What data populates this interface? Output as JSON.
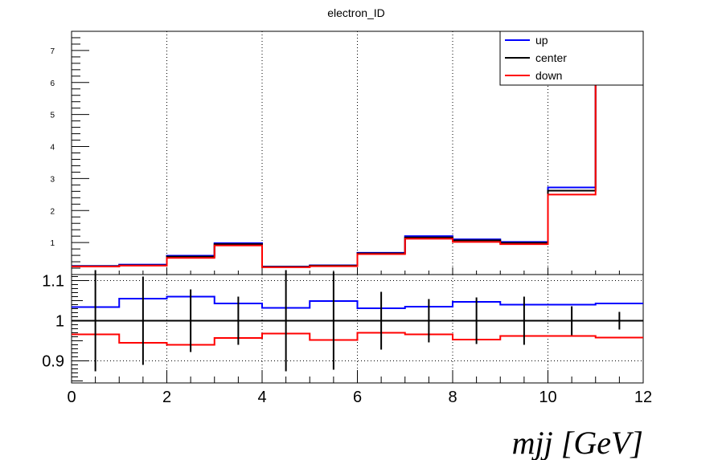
{
  "chart_data": {
    "type": "line",
    "title": "electron_ID",
    "xlabel": "mjj [GeV]",
    "legend": {
      "placement": "top-right",
      "entries": [
        {
          "name": "up",
          "color": "#0000ff"
        },
        {
          "name": "center",
          "color": "#000000"
        },
        {
          "name": "down",
          "color": "#ff0000"
        }
      ]
    },
    "bin_edges": [
      0,
      1,
      2,
      3,
      4,
      5,
      6,
      7,
      8,
      9,
      10,
      11,
      12
    ],
    "top_panel": {
      "ylim": [
        0,
        7.6
      ],
      "yticks": [
        1,
        2,
        3,
        4,
        5,
        6,
        7
      ],
      "ytick_labels": [
        "1",
        "2",
        "3",
        "4",
        "5",
        "6",
        "7"
      ],
      "grid_x": [
        2,
        4,
        6,
        8,
        10
      ],
      "series": [
        {
          "name": "up",
          "color": "#0000ff",
          "values": [
            0.27,
            0.31,
            0.59,
            0.98,
            0.25,
            0.29,
            0.68,
            1.2,
            1.1,
            1.02,
            2.72,
            7.8
          ]
        },
        {
          "name": "center",
          "color": "#000000",
          "values": [
            0.26,
            0.29,
            0.56,
            0.95,
            0.24,
            0.28,
            0.66,
            1.16,
            1.07,
            0.99,
            2.62,
            7.7
          ]
        },
        {
          "name": "down",
          "color": "#ff0000",
          "values": [
            0.25,
            0.28,
            0.52,
            0.91,
            0.23,
            0.26,
            0.64,
            1.12,
            1.02,
            0.95,
            2.5,
            7.6
          ]
        }
      ]
    },
    "ratio_panel": {
      "ylim": [
        0.845,
        1.115
      ],
      "yticks": [
        0.9,
        1,
        1.1
      ],
      "ytick_labels": [
        "0.9",
        "1",
        "1.1"
      ],
      "xticks": [
        0,
        2,
        4,
        6,
        8,
        10,
        12
      ],
      "xtick_labels": [
        "0",
        "2",
        "4",
        "6",
        "8",
        "10",
        "12"
      ],
      "grid_y": [
        0.9,
        1.1
      ],
      "reference": 1,
      "series": [
        {
          "name": "up",
          "color": "#0000ff",
          "values": [
            1.034,
            1.055,
            1.06,
            1.043,
            1.032,
            1.049,
            1.031,
            1.035,
            1.047,
            1.04,
            1.04,
            1.043
          ]
        },
        {
          "name": "down",
          "color": "#ff0000",
          "values": [
            0.966,
            0.945,
            0.94,
            0.957,
            0.968,
            0.952,
            0.97,
            0.966,
            0.953,
            0.962,
            0.962,
            0.958
          ]
        }
      ],
      "errors": [
        0.126,
        0.11,
        0.078,
        0.06,
        0.126,
        0.122,
        0.072,
        0.054,
        0.058,
        0.06,
        0.036,
        0.022
      ]
    }
  }
}
